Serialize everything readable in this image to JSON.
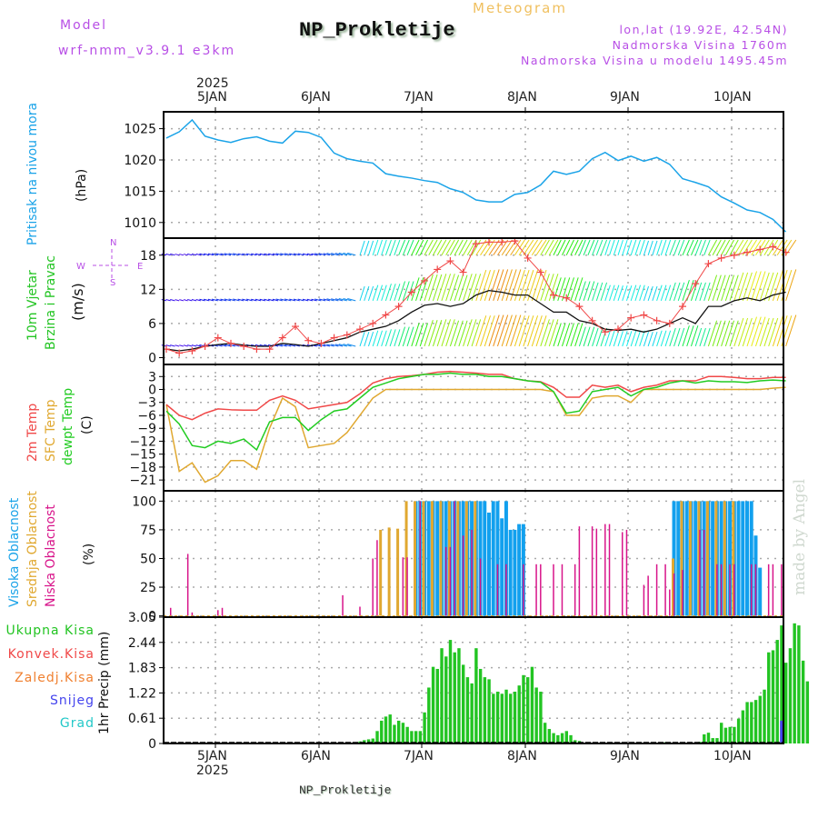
{
  "header": {
    "model_label": "Model",
    "model_name": "wrf-nmm_v3.9.1 e3km",
    "station_title": "NP_Prokletije",
    "meteogram_label": "Meteogram",
    "lonlat": "lon,lat (19.92E, 42.54N)",
    "elevation": "Nadmorska Visina 1760m",
    "model_elevation": "Nadmorska Visina u modelu 1495.45m"
  },
  "footer": {
    "station_name": "NP_Prokletije",
    "credit": "made by Angel"
  },
  "time_axis": {
    "year": "2025",
    "start": "2025-01-04T12:00",
    "step_hours": 1,
    "day_labels": [
      "5JAN",
      "6JAN",
      "7JAN",
      "8JAN",
      "9JAN",
      "10JAN"
    ]
  },
  "panel_labels": {
    "pressure": {
      "name": "Pritisak na nivou mora",
      "unit": "(hPa)"
    },
    "wind": {
      "name1": "10m Vjetar",
      "name2": "Brzina i Pravac",
      "unit": "(m/s)",
      "compass": {
        "n": "N",
        "s": "S",
        "w": "W",
        "e": "E"
      }
    },
    "temp": {
      "t2m": "2m Temp",
      "sfc": "SFC Temp",
      "dew": "dewpt Temp",
      "unit": "(C)"
    },
    "cloud": {
      "high": "Visoka Oblacnost",
      "mid": "Srednja Oblacnost",
      "low": "Niska Oblacnost",
      "unit": "(%)"
    },
    "precip": {
      "unit": "1hr Precip (mm)",
      "legend": [
        "Ukupna Kisa",
        "Konvek.Kisa",
        "Zaledj.Kisa",
        "Snijeg",
        "Grad"
      ]
    }
  },
  "colors": {
    "pressure": "#1aa3e8",
    "t2m": "#f04848",
    "sfc": "#e0a830",
    "dew": "#22cc22",
    "cloud_high": "#12a0ee",
    "cloud_mid": "#e0a830",
    "cloud_low": "#d8148a",
    "precip_total": "#22c422",
    "precip_conv": "#f04848",
    "precip_frz": "#f08030",
    "precip_snow": "#4444ee",
    "precip_hail": "#22c8c8",
    "wind_speed": "#111111",
    "wind_gust": "#f04848"
  },
  "chart_data": [
    {
      "type": "line",
      "title": "Pritisak na nivou mora",
      "ylabel": "(hPa)",
      "ylim": [
        1007.5,
        1027.7
      ],
      "yticks": [
        1010,
        1015,
        1020,
        1025
      ],
      "grid": true,
      "x_hours_from_start": [
        0,
        3,
        6,
        9,
        12,
        15,
        18,
        21,
        24,
        27,
        30,
        33,
        36,
        39,
        42,
        45,
        48,
        51,
        54,
        57,
        60,
        63,
        66,
        69,
        72,
        75,
        78,
        81,
        84,
        87,
        90,
        93,
        96,
        99,
        102,
        105,
        108,
        111,
        114,
        117,
        120,
        123,
        126,
        129,
        132,
        135,
        138,
        141,
        144
      ],
      "series": [
        {
          "name": "Pritisak",
          "values": [
            1023.5,
            1024.5,
            1026.4,
            1023.8,
            1023.2,
            1022.8,
            1023.4,
            1023.7,
            1023.0,
            1022.7,
            1024.6,
            1024.4,
            1023.6,
            1021.1,
            1020.2,
            1019.8,
            1019.5,
            1017.8,
            1017.4,
            1017.1,
            1016.7,
            1016.4,
            1015.4,
            1014.8,
            1013.6,
            1013.3,
            1013.3,
            1014.5,
            1014.8,
            1016.0,
            1018.2,
            1017.7,
            1018.2,
            1020.2,
            1021.2,
            1019.9,
            1020.6,
            1019.8,
            1020.4,
            1019.3,
            1017.0,
            1016.4,
            1015.7,
            1014.1,
            1013.1,
            1012.0,
            1011.6,
            1010.5,
            1008.5
          ]
        }
      ]
    },
    {
      "type": "line",
      "title": "10m Vjetar Brzina i Pravac",
      "ylabel": "(m/s)",
      "ylim": [
        -1.2,
        21
      ],
      "yticks": [
        0,
        6,
        12,
        18
      ],
      "grid": true,
      "x_hours_from_start": [
        0,
        3,
        6,
        9,
        12,
        15,
        18,
        21,
        24,
        27,
        30,
        33,
        36,
        39,
        42,
        45,
        48,
        51,
        54,
        57,
        60,
        63,
        66,
        69,
        72,
        75,
        78,
        81,
        84,
        87,
        90,
        93,
        96,
        99,
        102,
        105,
        108,
        111,
        114,
        117,
        120,
        123,
        126,
        129,
        132,
        135,
        138,
        141,
        144
      ],
      "series": [
        {
          "name": "Brzina vjetra",
          "values": [
            1.5,
            1.2,
            1.5,
            2.0,
            2.3,
            2.5,
            2.2,
            2.0,
            2.0,
            2.5,
            2.3,
            2.0,
            2.5,
            3.0,
            3.5,
            4.5,
            5.0,
            5.5,
            6.5,
            8.0,
            9.2,
            9.5,
            9.0,
            9.5,
            11.0,
            11.8,
            11.5,
            11.0,
            11.0,
            9.5,
            8.0,
            8.0,
            6.5,
            6.0,
            5.0,
            4.8,
            5.0,
            4.5,
            5.0,
            6.0,
            7.0,
            6.0,
            9.0,
            9.0,
            10.0,
            10.5,
            10.0,
            11.0,
            11.5
          ]
        },
        {
          "name": "Udari vjetra",
          "values": [
            1.5,
            0.8,
            1.2,
            2.0,
            3.5,
            2.5,
            2.0,
            1.5,
            1.5,
            3.5,
            5.5,
            3.0,
            2.5,
            3.5,
            4.0,
            5.0,
            6.0,
            7.5,
            9.0,
            11.5,
            13.5,
            15.5,
            17.0,
            15.0,
            20.0,
            20.3,
            20.3,
            20.5,
            17.5,
            15.0,
            11.0,
            10.5,
            9.0,
            6.5,
            4.5,
            5.0,
            7.0,
            7.5,
            6.5,
            6.0,
            9.0,
            13.0,
            16.5,
            17.5,
            18.0,
            18.5,
            19.0,
            19.5,
            18.5
          ]
        }
      ]
    },
    {
      "type": "line",
      "title": "2m Temp / SFC Temp / dewpt Temp",
      "ylabel": "(C)",
      "ylim": [
        -23.5,
        5.8
      ],
      "yticks": [
        3,
        0,
        -3,
        -6,
        -9,
        -12,
        -15,
        -18,
        -21
      ],
      "grid": true,
      "x_hours_from_start": [
        0,
        3,
        6,
        9,
        12,
        15,
        18,
        21,
        24,
        27,
        30,
        33,
        36,
        39,
        42,
        45,
        48,
        51,
        54,
        57,
        60,
        63,
        66,
        69,
        72,
        75,
        78,
        81,
        84,
        87,
        90,
        93,
        96,
        99,
        102,
        105,
        108,
        111,
        114,
        117,
        120,
        123,
        126,
        129,
        132,
        135,
        138,
        141,
        144
      ],
      "series": [
        {
          "name": "2m Temp",
          "values": [
            -3.5,
            -6.0,
            -7.0,
            -5.5,
            -4.5,
            -4.7,
            -4.8,
            -4.8,
            -2.5,
            -1.5,
            -2.5,
            -4.5,
            -4.0,
            -3.5,
            -3.0,
            -1.0,
            1.5,
            2.5,
            3.0,
            3.2,
            3.5,
            4.0,
            4.2,
            4.0,
            3.8,
            3.5,
            3.5,
            2.5,
            2.0,
            1.8,
            0.5,
            -1.8,
            -1.8,
            1.0,
            0.5,
            1.0,
            -0.5,
            0.5,
            1.0,
            2.0,
            2.0,
            2.0,
            3.0,
            3.0,
            2.8,
            2.5,
            2.5,
            2.8,
            2.8
          ]
        },
        {
          "name": "SFC Temp",
          "values": [
            -3.5,
            -19.0,
            -17.0,
            -21.5,
            -20.0,
            -16.5,
            -16.5,
            -18.5,
            -9.0,
            -2.0,
            -4.0,
            -13.5,
            -13.0,
            -12.5,
            -10.0,
            -6.0,
            -2.0,
            0.0,
            0.0,
            0.0,
            0.0,
            0.0,
            0.0,
            0.0,
            0.0,
            0.0,
            0.0,
            0.0,
            0.0,
            0.0,
            -0.5,
            -6.0,
            -6.0,
            -2.0,
            -1.5,
            -1.5,
            -3.0,
            0.0,
            0.0,
            0.0,
            0.0,
            0.0,
            0.0,
            0.0,
            0.0,
            0.0,
            0.0,
            0.3,
            0.5
          ]
        },
        {
          "name": "dewpt Temp",
          "values": [
            -5.0,
            -8.0,
            -13.0,
            -13.5,
            -12.0,
            -12.5,
            -11.5,
            -14.0,
            -7.5,
            -6.5,
            -6.5,
            -9.5,
            -7.0,
            -5.0,
            -4.5,
            -2.0,
            0.5,
            1.5,
            2.5,
            3.0,
            3.5,
            3.5,
            3.8,
            3.5,
            3.5,
            3.0,
            3.0,
            2.5,
            2.0,
            1.7,
            -0.5,
            -5.5,
            -5.0,
            -0.5,
            0.0,
            0.5,
            -1.5,
            0.0,
            0.5,
            1.5,
            2.0,
            1.5,
            2.0,
            1.8,
            1.8,
            1.6,
            2.0,
            2.2,
            2.0
          ]
        }
      ]
    },
    {
      "type": "bar",
      "title": "Oblacnost",
      "ylabel": "(%)",
      "ylim": [
        0,
        100
      ],
      "yticks": [
        0,
        25,
        50,
        75,
        100
      ],
      "grid": true,
      "series": [
        {
          "name": "Visoka Oblacnost",
          "hours": [
            58,
            59,
            60,
            61,
            62,
            63,
            64,
            65,
            66,
            67,
            68,
            69,
            70,
            71,
            72,
            73,
            74,
            75,
            76,
            77,
            78,
            79,
            80,
            81,
            82,
            83,
            118,
            119,
            120,
            121,
            122,
            123,
            124,
            125,
            126,
            127,
            128,
            129,
            130,
            131,
            132,
            133,
            134,
            135,
            136,
            137,
            138
          ],
          "values": [
            100,
            100,
            100,
            100,
            100,
            100,
            100,
            100,
            100,
            100,
            100,
            100,
            100,
            100,
            100,
            100,
            100,
            90,
            100,
            100,
            85,
            100,
            75,
            75,
            80,
            80,
            100,
            100,
            100,
            100,
            100,
            100,
            100,
            100,
            100,
            100,
            100,
            100,
            100,
            100,
            100,
            100,
            100,
            100,
            100,
            70,
            42
          ]
        },
        {
          "name": "Srednja Oblacnost",
          "hours": [
            50,
            52,
            54,
            56,
            58,
            60,
            62,
            64,
            66,
            68,
            70,
            72,
            118,
            120,
            122,
            124,
            126,
            128,
            130,
            132
          ],
          "values": [
            75,
            77,
            76,
            100,
            100,
            100,
            100,
            100,
            100,
            100,
            100,
            100,
            50,
            100,
            100,
            100,
            100,
            100,
            100,
            100
          ]
        },
        {
          "name": "Niska Oblacnost",
          "hours": [
            1,
            5,
            6,
            12,
            13,
            41,
            45,
            48,
            49,
            55,
            56,
            59,
            65,
            66,
            67,
            69,
            71,
            73,
            77,
            79,
            83,
            86,
            87,
            90,
            92,
            95,
            96,
            99,
            100,
            102,
            103,
            106,
            107,
            111,
            112,
            114,
            116,
            117,
            118,
            120,
            124,
            125,
            128,
            129,
            131,
            132,
            136,
            137,
            140,
            141,
            143
          ],
          "values": [
            7,
            54,
            3,
            5,
            7,
            18,
            8,
            50,
            66,
            51,
            51,
            100,
            60,
            60,
            100,
            70,
            75,
            50,
            45,
            45,
            45,
            45,
            45,
            45,
            45,
            45,
            78,
            78,
            76,
            80,
            80,
            73,
            75,
            27,
            35,
            45,
            45,
            23,
            37,
            40,
            75,
            75,
            45,
            45,
            45,
            45,
            45,
            45,
            45,
            45,
            45
          ]
        }
      ]
    },
    {
      "type": "bar",
      "title": "1hr Precip",
      "ylabel": "1hr Precip (mm)",
      "ylim": [
        0,
        3.05
      ],
      "yticks": [
        0,
        0.61,
        1.22,
        1.83,
        2.44,
        3.05
      ],
      "grid": true,
      "series": [
        {
          "name": "Ukupna Kisa",
          "start_hour": 42,
          "values": [
            0.02,
            0,
            0,
            0.05,
            0.08,
            0.1,
            0.12,
            0.3,
            0.55,
            0.65,
            0.7,
            0.45,
            0.55,
            0.5,
            0.4,
            0.3,
            0.3,
            0.3,
            0.75,
            1.35,
            1.85,
            1.8,
            2.3,
            2.1,
            2.5,
            2.2,
            2.3,
            1.9,
            1.6,
            1.45,
            2.3,
            1.8,
            1.6,
            1.55,
            1.2,
            1.25,
            1.2,
            1.3,
            1.2,
            1.25,
            1.4,
            1.65,
            1.6,
            1.85,
            1.35,
            1.25,
            0.5,
            0.35,
            0.25,
            0.2,
            0.25,
            0.3,
            0.2,
            0.08,
            0.06,
            0,
            0,
            0,
            0,
            0,
            0,
            0,
            0,
            0,
            0,
            0,
            0,
            0,
            0,
            0,
            0.02,
            0,
            0.02,
            0.02,
            0.03,
            0,
            0,
            0,
            0,
            0,
            0,
            0,
            0.04,
            0.22,
            0.26,
            0.13,
            0.13,
            0.5,
            0.38,
            0.4,
            0.4,
            0.6,
            0.8,
            1.0,
            1.0,
            1.05,
            1.15,
            1.3,
            2.2,
            2.25,
            2.5,
            2.85,
            1.95,
            2.3,
            2.9,
            2.85,
            2.0,
            1.5
          ]
        },
        {
          "name": "Snijeg",
          "start_hour": 143,
          "values": [
            0.55
          ]
        }
      ]
    }
  ]
}
